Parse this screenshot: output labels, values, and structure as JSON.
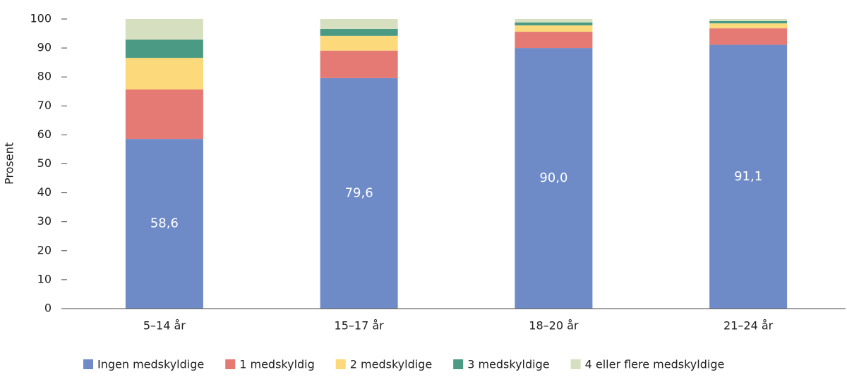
{
  "chart_data": {
    "type": "stacked-bar",
    "y_label": "Prosent",
    "categories": [
      "5–14 år",
      "15–17 år",
      "18–20 år",
      "21–24 år"
    ],
    "series": [
      {
        "name": "Ingen medskyldige",
        "color": "#6e8bc8",
        "values": [
          58.6,
          79.6,
          90.0,
          91.1
        ],
        "value_labels": [
          "58,6",
          "79,6",
          "90,0",
          "91,1"
        ]
      },
      {
        "name": "1 medskyldig",
        "color": "#e57a74",
        "values": [
          17.1,
          9.5,
          5.6,
          5.7
        ]
      },
      {
        "name": "2 medskyldige",
        "color": "#fcd97a",
        "values": [
          10.9,
          5.1,
          2.2,
          1.7
        ]
      },
      {
        "name": "3 medskyldige",
        "color": "#4a9a84",
        "values": [
          6.3,
          2.4,
          1.0,
          0.8
        ]
      },
      {
        "name": "4 eller flere medskyldige",
        "color": "#d6e0c0",
        "values": [
          7.1,
          3.4,
          1.2,
          0.7
        ]
      }
    ],
    "ylim": [
      0,
      100
    ],
    "yticks": [
      0,
      10,
      20,
      30,
      40,
      50,
      60,
      70,
      80,
      90,
      100
    ],
    "grid": false
  }
}
